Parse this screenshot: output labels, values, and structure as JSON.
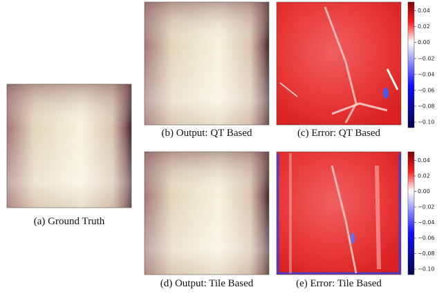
{
  "panels": [
    {
      "caption": "(a) Ground Truth"
    },
    {
      "caption": "(b) Output: QT Based"
    },
    {
      "caption": "(c) Error: QT Based"
    },
    {
      "caption": "(d) Output: Tile Based"
    },
    {
      "caption": "(e) Error: Tile Based"
    }
  ],
  "colorbars": [
    {
      "lim": [
        -0.107,
        0.051
      ],
      "ticks": [
        {
          "value": 0.04,
          "label": "0.04"
        },
        {
          "value": 0.02,
          "label": "0.02"
        },
        {
          "value": 0,
          "label": "0.00"
        },
        {
          "value": -0.02,
          "label": "−0.02"
        },
        {
          "value": -0.04,
          "label": "−0.04"
        },
        {
          "value": -0.06,
          "label": "−0.06"
        },
        {
          "value": -0.08,
          "label": "−0.08"
        },
        {
          "value": -0.1,
          "label": "−0.10"
        }
      ]
    },
    {
      "lim": [
        -0.107,
        0.051
      ],
      "ticks": [
        {
          "value": 0.04,
          "label": "0.04"
        },
        {
          "value": 0.02,
          "label": "0.02"
        },
        {
          "value": 0,
          "label": "0.00"
        },
        {
          "value": -0.02,
          "label": "−0.02"
        },
        {
          "value": -0.04,
          "label": "−0.04"
        },
        {
          "value": -0.06,
          "label": "−0.06"
        },
        {
          "value": -0.08,
          "label": "−0.08"
        },
        {
          "value": -0.1,
          "label": "−0.10"
        }
      ]
    }
  ]
}
